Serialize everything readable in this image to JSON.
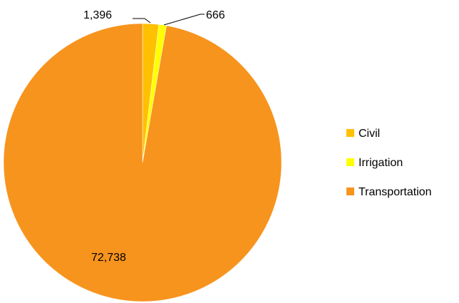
{
  "chart_data": {
    "type": "pie",
    "categories": [
      "Civil",
      "Irrigation",
      "Transportation"
    ],
    "values": [
      1396,
      666,
      72738
    ],
    "value_labels": [
      "1,396",
      "666",
      "72,738"
    ],
    "colors": [
      "#FFC000",
      "#FFFF00",
      "#F7941D"
    ],
    "legend": {
      "placement": "right",
      "entries": [
        "Civil",
        "Irrigation",
        "Transportation"
      ]
    }
  }
}
